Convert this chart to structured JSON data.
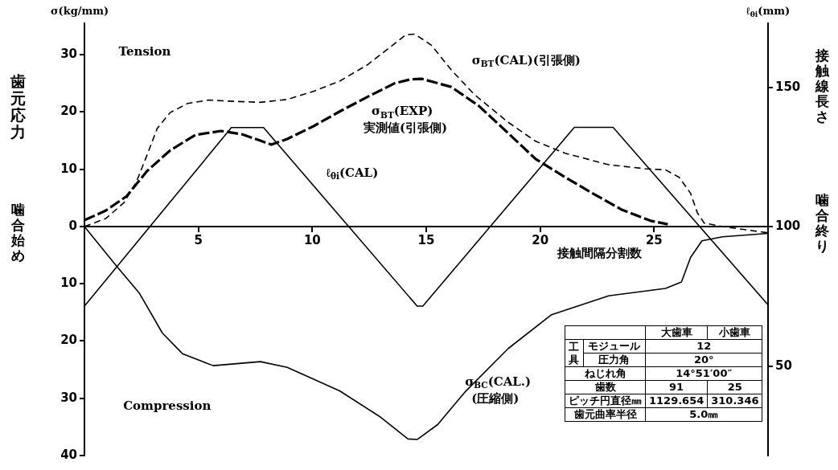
{
  "chart_data": {
    "type": "line",
    "xlabel": "接触間隔分割数",
    "ylabel": "歯元応力",
    "y2label": "接触線長さ",
    "xlim": [
      0,
      30
    ],
    "xticks": [
      5,
      10,
      15,
      20,
      25
    ],
    "ylim": [
      -40,
      35.5
    ],
    "yticks": [
      {
        "value": -40,
        "label": "40"
      },
      {
        "value": -30,
        "label": "30"
      },
      {
        "value": -20,
        "label": "20"
      },
      {
        "value": -10,
        "label": "10"
      },
      0,
      10,
      20,
      30
    ],
    "y2lim": [
      18,
      173
    ],
    "y2ticks": [
      50,
      100,
      150
    ],
    "grid": false,
    "legend": false,
    "marker": "none",
    "series": [
      {
        "name": "σ$_{BT}$(CAL)(引張側)",
        "color": "#000000",
        "line_style": "dashed",
        "x": [
          0,
          0.94,
          1.74,
          2.28,
          2.75,
          3.19,
          3.76,
          4.53,
          5.45,
          6.34,
          7.72,
          8.9,
          10.04,
          11.2,
          12.4,
          13.6,
          14.1,
          14.5,
          15.22,
          16.09,
          17.1,
          18.6,
          19.8,
          21.1,
          23.0,
          24.6,
          25.5,
          26.1,
          26.6,
          26.9,
          27.2,
          28.0,
          30.0
        ],
        "values": [
          0,
          1.4,
          4.2,
          7.8,
          12.5,
          17.1,
          19.9,
          21.5,
          22.1,
          21.9,
          21.7,
          22.2,
          23.6,
          25.4,
          28.2,
          31.9,
          33.5,
          33.6,
          31.7,
          27.4,
          23.1,
          18.2,
          14.9,
          12.8,
          10.8,
          10.1,
          9.9,
          8.6,
          5.8,
          2.4,
          0.6,
          0,
          -1.1
        ]
      },
      {
        "name": "σ$_{BT}$(EXP) 実測値(引張側)",
        "color": "#000000",
        "line_style": "dashed",
        "x": [
          0,
          0.94,
          1.85,
          2.75,
          3.76,
          4.87,
          6.0,
          6.93,
          7.72,
          8.2,
          8.9,
          10.04,
          11.2,
          12.4,
          13.6,
          14.3,
          14.8,
          16.09,
          17.3,
          18.6,
          19.8,
          21.1,
          22.3,
          23.6,
          24.85,
          25.6
        ],
        "values": [
          1.1,
          2.8,
          5.3,
          9.7,
          13.3,
          16.0,
          16.7,
          16.1,
          15.0,
          14.3,
          15.3,
          17.5,
          20.1,
          22.6,
          25.0,
          25.7,
          25.8,
          24.4,
          21.1,
          16.3,
          11.8,
          8.6,
          5.8,
          2.9,
          1.0,
          0.4
        ]
      },
      {
        "name": "ℓ$_{θi}$(CAL)",
        "color": "#000000",
        "line_style": "solid",
        "axis": "y2",
        "x": [
          0,
          6.45,
          7.86,
          14.6,
          14.85,
          21.5,
          23.2,
          30
        ],
        "values": [
          71.6,
          135.6,
          135.6,
          71.6,
          71.6,
          135.7,
          135.7,
          72
        ]
      },
      {
        "name": "σ$_{BC}$(CAL.) (圧縮側)",
        "color": "#000000",
        "line_style": "solid",
        "x": [
          0,
          1.41,
          2.42,
          3.42,
          4.3,
          5.65,
          7.72,
          8.9,
          11.2,
          13.0,
          14.2,
          14.6,
          15.5,
          16.7,
          18.6,
          20.5,
          23.0,
          25.5,
          26.2,
          26.6,
          27.1,
          28.0,
          30.0
        ],
        "values": [
          0,
          -6.9,
          -11.7,
          -18.6,
          -22.2,
          -24.3,
          -23.6,
          -24.6,
          -28.7,
          -33.3,
          -37.1,
          -37.2,
          -34.6,
          -28.9,
          -21.3,
          -15.4,
          -12.1,
          -10.8,
          -9.7,
          -5.4,
          -2.5,
          -1.8,
          -1.2
        ]
      }
    ],
    "annotations": [
      "σ(kg/mm)",
      "ℓ$_{θi}$(mm)",
      "Tension",
      "Compression",
      "噛合始め",
      "噛合終り",
      "大歯車",
      "小歯車",
      "工具",
      "モジュール",
      "12",
      "圧力角",
      "20°",
      "ねじれ角",
      "14°51′00″",
      "歯数",
      "91",
      "25",
      "ピッチ円直径㎜",
      "1129.654",
      "310.346",
      "歯元曲率半径",
      "5.0㎜"
    ]
  }
}
